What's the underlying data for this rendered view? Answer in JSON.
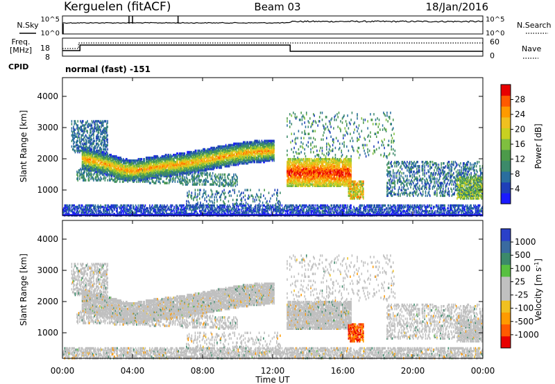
{
  "header": {
    "station": "Kerguelen",
    "fit": "(fitACF)",
    "beam": "Beam 03",
    "date": "18/Jan/2016"
  },
  "noise_panel": {
    "left_label": "N.Sky",
    "right_label": "N.Search",
    "ticks": [
      "10^5",
      "10^0"
    ]
  },
  "freq_panel": {
    "left_label_line1": "Freq.",
    "left_label_line2": "[MHz]",
    "left_ticks": [
      "18",
      "8"
    ],
    "right_label": "Nave",
    "right_ticks": [
      "60",
      "0"
    ]
  },
  "cpid": {
    "label": "CPID",
    "value": "normal (fast) -151"
  },
  "time_axis": {
    "ticks": [
      "00:00",
      "04:00",
      "08:00",
      "12:00",
      "16:00",
      "20:00",
      "00:00"
    ],
    "label": "Time UT"
  },
  "chart_data": [
    {
      "type": "heatmap",
      "name": "power",
      "xlabel": "Time UT",
      "ylabel": "Slant Range [km]",
      "xlim": [
        0,
        24
      ],
      "ylim": [
        180,
        4600
      ],
      "y_ticks": [
        "1000",
        "2000",
        "3000",
        "4000"
      ],
      "colorbar": {
        "label": "Power [dB]",
        "ticks": [
          "4",
          "8",
          "12",
          "16",
          "20",
          "24",
          "28"
        ],
        "colors": [
          "#1a1aff",
          "#1f3fb8",
          "#2a6e9e",
          "#3c8a6a",
          "#4c9a4a",
          "#7fbf3f",
          "#c8d020",
          "#f0c020",
          "#ff9a00",
          "#ff5a00",
          "#e80000"
        ]
      },
      "features": [
        {
          "name": "E-region band",
          "t_range": [
            0,
            24
          ],
          "range_km": [
            200,
            500
          ],
          "mean_power": 6
        },
        {
          "name": "Main echo band",
          "t_range": [
            1.2,
            12
          ],
          "range_km_center": 1900,
          "mean_power": 18
        },
        {
          "name": "Near-range echoes",
          "t_range": [
            2,
            9
          ],
          "range_km_center": 1200,
          "mean_power": 9
        },
        {
          "name": "Post-12UT echoes",
          "t_range": [
            12.8,
            16
          ],
          "range_km_center": 1500,
          "mean_power": 22
        },
        {
          "name": "Late echoes",
          "t_range": [
            19,
            24
          ],
          "range_km_center": 1300,
          "mean_power": 10
        }
      ]
    },
    {
      "type": "heatmap",
      "name": "velocity",
      "xlabel": "Time UT",
      "ylabel": "Slant Range [km]",
      "xlim": [
        0,
        24
      ],
      "ylim": [
        180,
        4600
      ],
      "y_ticks": [
        "1000",
        "2000",
        "3000",
        "4000"
      ],
      "colorbar": {
        "label": "Velocity [m s^-1]",
        "ticks": [
          "1000",
          "500",
          "100",
          "25",
          "-25",
          "-100",
          "-500",
          "-1000"
        ],
        "colors": [
          "#2a40c8",
          "#3a6aa0",
          "#3c8a6a",
          "#58c040",
          "#c0c0c0",
          "#c0c0c0",
          "#f0c020",
          "#ff9a00",
          "#ff5a00",
          "#e80000"
        ]
      }
    }
  ]
}
